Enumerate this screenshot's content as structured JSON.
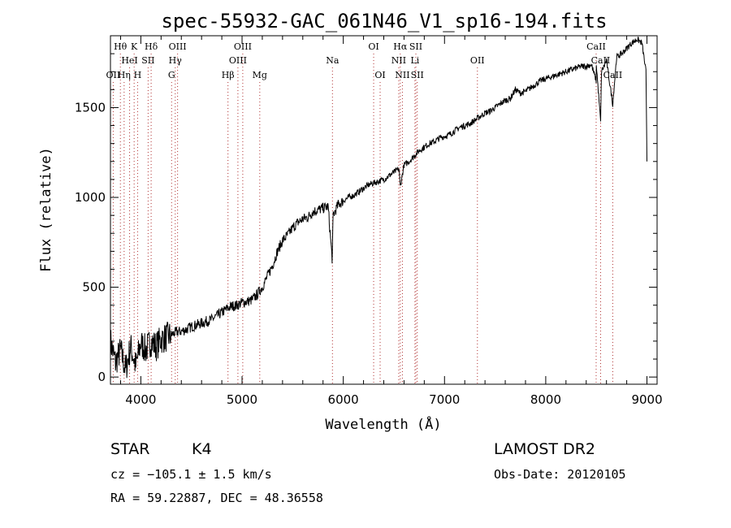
{
  "chart_data": {
    "type": "line",
    "title": "spec-55932-GAC_061N46_V1_sp16-194.fits",
    "xlabel": "Wavelength (Å)",
    "ylabel": "Flux (relative)",
    "xlim": [
      3700,
      9100
    ],
    "ylim": [
      -40,
      1900
    ],
    "xticks": [
      4000,
      5000,
      6000,
      7000,
      8000,
      9000
    ],
    "yticks": [
      0,
      500,
      1000,
      1500
    ],
    "grid": false,
    "line_color": "#000000",
    "marker_color": "#b03030",
    "series": [
      {
        "x": [
          3700,
          3750,
          3800,
          3850,
          3900,
          3950,
          4000,
          4050,
          4100,
          4150,
          4200,
          4250,
          4300,
          4350,
          4400,
          4450,
          4500,
          4550,
          4600,
          4650,
          4700,
          4750,
          4800,
          4850,
          4900,
          4950,
          5000,
          5050,
          5100,
          5150,
          5200,
          5250,
          5300,
          5350,
          5400,
          5450,
          5500,
          5550,
          5600,
          5650,
          5700,
          5750,
          5800,
          5850,
          5890,
          5900,
          5950,
          6000,
          6050,
          6100,
          6150,
          6200,
          6250,
          6300,
          6350,
          6400,
          6450,
          6500,
          6550,
          6563,
          6600,
          6650,
          6700,
          6750,
          6800,
          6850,
          6900,
          6950,
          7000,
          7050,
          7100,
          7150,
          7200,
          7250,
          7300,
          7350,
          7400,
          7450,
          7500,
          7550,
          7600,
          7650,
          7700,
          7750,
          7800,
          7850,
          7900,
          7950,
          8000,
          8050,
          8100,
          8150,
          8200,
          8250,
          8300,
          8350,
          8400,
          8450,
          8498,
          8500,
          8542,
          8550,
          8600,
          8662,
          8700,
          8750,
          8800,
          8850,
          8900,
          8950,
          8990,
          9000
        ],
        "y": [
          200,
          80,
          150,
          40,
          170,
          60,
          190,
          150,
          200,
          170,
          210,
          220,
          235,
          250,
          255,
          265,
          280,
          290,
          300,
          310,
          320,
          340,
          360,
          380,
          395,
          400,
          415,
          420,
          430,
          460,
          500,
          560,
          620,
          700,
          760,
          790,
          830,
          860,
          880,
          890,
          920,
          930,
          940,
          950,
          660,
          900,
          960,
          980,
          1000,
          1010,
          1030,
          1050,
          1070,
          1080,
          1090,
          1100,
          1120,
          1140,
          1160,
          1060,
          1180,
          1200,
          1230,
          1260,
          1280,
          1300,
          1310,
          1330,
          1340,
          1350,
          1370,
          1390,
          1400,
          1410,
          1430,
          1450,
          1470,
          1480,
          1500,
          1520,
          1540,
          1550,
          1600,
          1580,
          1590,
          1610,
          1630,
          1650,
          1660,
          1670,
          1680,
          1690,
          1700,
          1710,
          1720,
          1730,
          1730,
          1740,
          1650,
          1740,
          1420,
          1700,
          1760,
          1520,
          1780,
          1800,
          1830,
          1860,
          1880,
          1860,
          1700,
          1200
        ]
      }
    ],
    "lines": [
      {
        "label": "Hθ",
        "wl": 3798,
        "row": 0
      },
      {
        "label": "K",
        "wl": 3934,
        "row": 0
      },
      {
        "label": "Hδ",
        "wl": 4102,
        "row": 0
      },
      {
        "label": "OIII",
        "wl": 4363,
        "row": 0
      },
      {
        "label": "OIII",
        "wl": 5007,
        "row": 0
      },
      {
        "label": "OI",
        "wl": 6300,
        "row": 0
      },
      {
        "label": "Hα",
        "wl": 6563,
        "row": 0
      },
      {
        "label": "SII",
        "wl": 6717,
        "row": 0
      },
      {
        "label": "CaII",
        "wl": 8498,
        "row": 0
      },
      {
        "label": "HeI",
        "wl": 3889,
        "row": 1
      },
      {
        "label": "SII",
        "wl": 4072,
        "row": 1
      },
      {
        "label": "Hγ",
        "wl": 4340,
        "row": 1
      },
      {
        "label": "OIII",
        "wl": 4959,
        "row": 1
      },
      {
        "label": "Na",
        "wl": 5893,
        "row": 1
      },
      {
        "label": "NII",
        "wl": 6548,
        "row": 1
      },
      {
        "label": "Li",
        "wl": 6708,
        "row": 1
      },
      {
        "label": "OII",
        "wl": 7325,
        "row": 1
      },
      {
        "label": "CaII",
        "wl": 8542,
        "row": 1
      },
      {
        "label": "OII",
        "wl": 3727,
        "row": 2
      },
      {
        "label": "Hη",
        "wl": 3835,
        "row": 2
      },
      {
        "label": "H",
        "wl": 3968,
        "row": 2
      },
      {
        "label": "G",
        "wl": 4304,
        "row": 2
      },
      {
        "label": "Hβ",
        "wl": 4861,
        "row": 2
      },
      {
        "label": "Mg",
        "wl": 5175,
        "row": 2
      },
      {
        "label": "OI",
        "wl": 6364,
        "row": 2
      },
      {
        "label": "NII",
        "wl": 6584,
        "row": 2
      },
      {
        "label": "SII",
        "wl": 6731,
        "row": 2
      },
      {
        "label": "CaII",
        "wl": 8662,
        "row": 2
      }
    ]
  },
  "info": {
    "object_type": "STAR",
    "subclass": "K4",
    "redshift_line": "cz = −105.1 ± 1.5 km/s",
    "position_line": "RA =  59.22887, DEC =  48.36558",
    "survey": "LAMOST DR2",
    "obs_date": "Obs-Date: 20120105"
  }
}
